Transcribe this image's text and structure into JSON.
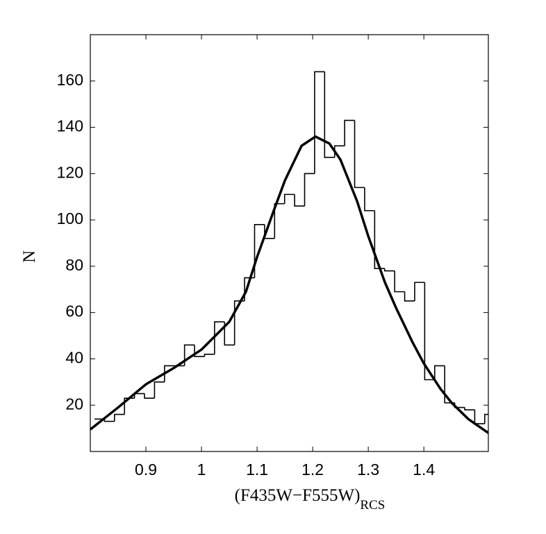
{
  "chart_data": {
    "type": "histogram",
    "x_label": {
      "text": "(F435W−F555W)",
      "subscript": "RCS"
    },
    "y_label": "N",
    "xlim": [
      0.8,
      1.516
    ],
    "ylim": [
      0,
      180
    ],
    "xticks": [
      0.9,
      1,
      1.1,
      1.2,
      1.3,
      1.4
    ],
    "yticks": [
      20,
      40,
      60,
      80,
      100,
      120,
      140,
      160
    ],
    "color": "#000000",
    "bins": [
      0.8075,
      0.8255,
      0.8435,
      0.8615,
      0.8795,
      0.8975,
      0.9155,
      0.9335,
      0.9515,
      0.9695,
      0.9875,
      1.0055,
      1.0235,
      1.0415,
      1.0595,
      1.0775,
      1.0955,
      1.1135,
      1.1315,
      1.1495,
      1.1675,
      1.1855,
      1.2035,
      1.2215,
      1.2395,
      1.2575,
      1.2755,
      1.2935,
      1.3115,
      1.3295,
      1.3475,
      1.3655,
      1.3835,
      1.4015,
      1.4195,
      1.4375,
      1.4555,
      1.4735,
      1.4915,
      1.5095,
      1.5275
    ],
    "counts": [
      14,
      13,
      16,
      23,
      25,
      23,
      30,
      37,
      37,
      46,
      41,
      42,
      56,
      46,
      65,
      75,
      98,
      92,
      107,
      111,
      106,
      120,
      164,
      127,
      132,
      143,
      114,
      104,
      79,
      78,
      69,
      65,
      73,
      31,
      37,
      21,
      19,
      18,
      12,
      16
    ],
    "series": [
      {
        "color": "#000000",
        "x": [
          0.8,
          0.85,
          0.9,
          0.95,
          1.0,
          1.05,
          1.08,
          1.1,
          1.13,
          1.15,
          1.18,
          1.205,
          1.23,
          1.25,
          1.28,
          1.3,
          1.33,
          1.35,
          1.38,
          1.4,
          1.43,
          1.45,
          1.48,
          1.516
        ],
        "values": [
          9.5,
          19,
          29,
          36,
          44,
          56,
          69,
          84,
          104,
          117,
          132,
          136,
          133,
          126,
          108,
          93,
          73,
          62,
          47,
          38,
          27,
          21,
          14,
          8
        ]
      }
    ]
  }
}
